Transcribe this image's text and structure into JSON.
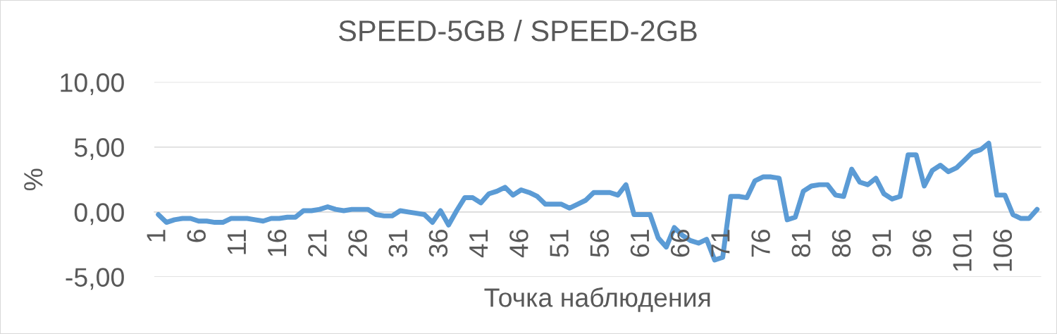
{
  "chart_data": {
    "type": "line",
    "title": "SPEED-5GB / SPEED-2GB",
    "xlabel": "Точка наблюдения",
    "ylabel": "%",
    "categories": [
      "1",
      null,
      null,
      null,
      null,
      "6",
      null,
      null,
      null,
      null,
      "11",
      null,
      null,
      null,
      null,
      "16",
      null,
      null,
      null,
      null,
      "21",
      null,
      null,
      null,
      null,
      "26",
      null,
      null,
      null,
      null,
      "31",
      null,
      null,
      null,
      null,
      "36",
      null,
      null,
      null,
      null,
      "41",
      null,
      null,
      null,
      null,
      "46",
      null,
      null,
      null,
      null,
      "51",
      null,
      null,
      null,
      null,
      "56",
      null,
      null,
      null,
      null,
      "61",
      null,
      null,
      null,
      null,
      "66",
      null,
      null,
      null,
      null,
      "71",
      null,
      null,
      null,
      null,
      "76",
      null,
      null,
      null,
      null,
      "81",
      null,
      null,
      null,
      null,
      "86",
      null,
      null,
      null,
      null,
      "91",
      null,
      null,
      null,
      null,
      "96",
      null,
      null,
      null,
      null,
      "101",
      null,
      null,
      null,
      null,
      "106",
      null,
      null,
      null,
      null
    ],
    "series": [
      {
        "color": "#5b9bd5",
        "values": [
          -0.2,
          -0.8,
          -0.6,
          -0.5,
          -0.5,
          -0.7,
          -0.7,
          -0.8,
          -0.8,
          -0.5,
          -0.5,
          -0.5,
          -0.6,
          -0.7,
          -0.5,
          -0.5,
          -0.4,
          -0.4,
          0.1,
          0.1,
          0.2,
          0.4,
          0.2,
          0.1,
          0.2,
          0.2,
          0.2,
          -0.2,
          -0.3,
          -0.3,
          0.1,
          0.0,
          -0.1,
          -0.2,
          -0.8,
          0.1,
          -1.0,
          0.1,
          1.1,
          1.1,
          0.7,
          1.4,
          1.6,
          1.9,
          1.3,
          1.7,
          1.5,
          1.2,
          0.6,
          0.6,
          0.6,
          0.3,
          0.6,
          0.9,
          1.5,
          1.5,
          1.5,
          1.3,
          2.1,
          -0.2,
          -0.2,
          -0.2,
          -2.0,
          -2.7,
          -1.2,
          -1.8,
          -2.2,
          -2.4,
          -2.1,
          -3.7,
          -3.5,
          1.2,
          1.2,
          1.1,
          2.4,
          2.7,
          2.7,
          2.6,
          -0.6,
          -0.4,
          1.6,
          2.0,
          2.1,
          2.1,
          1.3,
          1.2,
          3.3,
          2.3,
          2.1,
          2.6,
          1.4,
          1.0,
          1.2,
          4.4,
          4.4,
          2.0,
          3.2,
          3.6,
          3.1,
          3.4,
          4.0,
          4.6,
          4.8,
          5.3,
          1.3,
          1.3,
          -0.2,
          -0.5,
          -0.5,
          0.2
        ]
      }
    ],
    "ylim": [
      -5,
      10
    ],
    "yticks": [
      {
        "value": -5,
        "label": "-5,00"
      },
      {
        "value": 0,
        "label": "0,00"
      },
      {
        "value": 5,
        "label": "5,00"
      },
      {
        "value": 10,
        "label": "10,00"
      }
    ],
    "grid": "y",
    "line_style": "solid"
  }
}
